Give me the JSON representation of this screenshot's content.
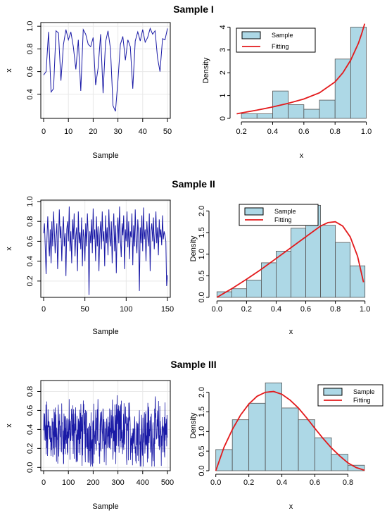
{
  "colors": {
    "line": "#1a1aa6",
    "bar_fill": "#add8e6",
    "bar_edge": "#555555",
    "fit": "#e31a1c",
    "grid": "#e8e8e8"
  },
  "panels": [
    {
      "title": "Sample I",
      "trace": {
        "type": "line",
        "xlabel": "Sample",
        "ylabel": "x",
        "xlim": [
          0,
          50
        ],
        "ylim": [
          0.2,
          1.02
        ],
        "xticks": [
          0,
          10,
          20,
          30,
          40,
          50
        ],
        "yticks": [
          0.4,
          0.6,
          0.8,
          1.0
        ],
        "ytick_labels": [
          "0.4",
          "0.6",
          "0.8",
          "1.0"
        ],
        "values": [
          0.57,
          0.6,
          0.95,
          0.42,
          0.45,
          0.96,
          0.94,
          0.52,
          0.84,
          0.97,
          0.88,
          0.95,
          0.82,
          0.62,
          0.88,
          0.43,
          0.97,
          0.93,
          0.84,
          0.82,
          0.9,
          0.48,
          0.63,
          0.93,
          0.41,
          0.86,
          0.96,
          0.8,
          0.3,
          0.25,
          0.52,
          0.84,
          0.91,
          0.7,
          0.88,
          0.82,
          0.45,
          0.87,
          0.95,
          0.87,
          0.97,
          0.86,
          0.9,
          0.98,
          0.93,
          0.96,
          0.72,
          0.6,
          0.89,
          0.88,
          0.98
        ]
      },
      "hist": {
        "type": "bar",
        "xlabel": "x",
        "ylabel": "Density",
        "xlim": [
          0.15,
          1.02
        ],
        "ylim": [
          0,
          4.2
        ],
        "xticks": [
          0.2,
          0.4,
          0.6,
          0.8,
          1.0
        ],
        "xtick_labels": [
          "0.2",
          "0.4",
          "0.6",
          "0.8",
          "1.0"
        ],
        "yticks": [
          0,
          1,
          2,
          3,
          4
        ],
        "ytick_labels": [
          "0",
          "1",
          "2",
          "3",
          "4"
        ],
        "bins": [
          0.2,
          0.3,
          0.4,
          0.5,
          0.6,
          0.7,
          0.8,
          0.9,
          1.0
        ],
        "values": [
          0.2,
          0.2,
          1.2,
          0.6,
          0.4,
          0.8,
          2.6,
          4.0
        ],
        "fit_x": [
          0.17,
          0.2,
          0.3,
          0.4,
          0.5,
          0.6,
          0.7,
          0.8,
          0.85,
          0.9,
          0.95,
          0.97,
          0.99
        ],
        "fit_y": [
          0.2,
          0.24,
          0.36,
          0.5,
          0.66,
          0.85,
          1.12,
          1.6,
          2.0,
          2.55,
          3.3,
          3.7,
          4.15
        ],
        "legend": [
          "Sample",
          "Fitting"
        ],
        "legend_pos": "top-left"
      }
    },
    {
      "title": "Sample II",
      "trace": {
        "type": "line",
        "xlabel": "Sample",
        "ylabel": "x",
        "xlim": [
          0,
          150
        ],
        "ylim": [
          0.05,
          1.0
        ],
        "xticks": [
          0,
          50,
          100,
          150
        ],
        "yticks": [
          0.2,
          0.4,
          0.6,
          0.8,
          1.0
        ],
        "ytick_labels": [
          "0.2",
          "0.4",
          "0.6",
          "0.8",
          "1.0"
        ],
        "values": [
          0.68,
          0.78,
          0.55,
          0.27,
          0.62,
          0.85,
          0.6,
          0.45,
          0.72,
          0.38,
          0.8,
          0.55,
          0.9,
          0.7,
          0.48,
          0.65,
          0.78,
          0.32,
          0.58,
          0.92,
          0.63,
          0.75,
          0.4,
          0.7,
          0.85,
          0.55,
          0.68,
          0.25,
          0.72,
          0.8,
          0.6,
          0.95,
          0.5,
          0.7,
          0.38,
          0.82,
          0.62,
          0.88,
          0.45,
          0.66,
          0.74,
          0.3,
          0.9,
          0.58,
          0.69,
          0.52,
          0.84,
          0.35,
          0.72,
          0.64,
          0.4,
          0.78,
          0.55,
          0.88,
          0.66,
          0.06,
          0.7,
          0.58,
          0.82,
          0.48,
          0.93,
          0.62,
          0.72,
          0.4,
          0.85,
          0.55,
          0.75,
          0.3,
          0.66,
          0.8,
          0.52,
          0.9,
          0.6,
          0.7,
          0.35,
          0.86,
          0.58,
          0.74,
          0.46,
          0.92,
          0.64,
          0.55,
          0.8,
          0.38,
          0.7,
          0.88,
          0.5,
          0.76,
          0.28,
          0.68,
          0.84,
          0.58,
          0.95,
          0.62,
          0.44,
          0.78,
          0.66,
          0.86,
          0.32,
          0.72,
          0.6,
          0.9,
          0.54,
          0.8,
          0.42,
          0.7,
          0.64,
          0.88,
          0.36,
          0.76,
          0.55,
          0.92,
          0.6,
          0.48,
          0.82,
          0.68,
          0.1,
          0.74,
          0.58,
          0.86,
          0.5,
          0.94,
          0.62,
          0.72,
          0.4,
          0.8,
          0.66,
          0.55,
          0.88,
          0.3,
          0.7,
          0.78,
          0.6,
          0.84,
          0.52,
          0.68,
          0.9,
          0.58,
          0.74,
          0.46,
          0.82,
          0.64,
          0.72,
          0.56,
          0.86,
          0.62,
          0.7,
          0.66,
          0.6,
          0.15,
          0.26
        ]
      },
      "hist": {
        "type": "bar",
        "xlabel": "x",
        "ylabel": "Density",
        "xlim": [
          -0.03,
          1.03
        ],
        "ylim": [
          0,
          2.25
        ],
        "xticks": [
          0.0,
          0.2,
          0.4,
          0.6,
          0.8,
          1.0
        ],
        "xtick_labels": [
          "0.0",
          "0.2",
          "0.4",
          "0.6",
          "0.8",
          "1.0"
        ],
        "yticks": [
          0.0,
          0.5,
          1.0,
          1.5,
          2.0
        ],
        "ytick_labels": [
          "0.0",
          "0.5",
          "1.0",
          "1.5",
          "2.0"
        ],
        "bins": [
          0.0,
          0.1,
          0.2,
          0.3,
          0.4,
          0.5,
          0.6,
          0.7,
          0.8,
          0.9,
          1.0
        ],
        "values": [
          0.13,
          0.2,
          0.4,
          0.8,
          1.07,
          1.6,
          2.13,
          1.67,
          1.27,
          0.73
        ],
        "fit_x": [
          0.0,
          0.1,
          0.2,
          0.3,
          0.4,
          0.5,
          0.6,
          0.7,
          0.75,
          0.8,
          0.85,
          0.9,
          0.95,
          0.99
        ],
        "fit_y": [
          0.0,
          0.2,
          0.42,
          0.65,
          0.9,
          1.15,
          1.4,
          1.65,
          1.73,
          1.75,
          1.65,
          1.4,
          0.95,
          0.35
        ],
        "legend": [
          "Sample",
          "Fitting"
        ],
        "legend_pos": "top-left"
      }
    },
    {
      "title": "Sample III",
      "trace": {
        "type": "line",
        "xlabel": "Sample",
        "ylabel": "x",
        "xlim": [
          0,
          500
        ],
        "ylim": [
          -0.02,
          0.9
        ],
        "xticks": [
          0,
          100,
          200,
          300,
          400,
          500
        ],
        "yticks": [
          0.0,
          0.2,
          0.4,
          0.6,
          0.8
        ],
        "ytick_labels": [
          "0.0",
          "0.2",
          "0.4",
          "0.6",
          "0.8"
        ],
        "series_count": 500,
        "series_range": [
          0.01,
          0.86
        ]
      },
      "hist": {
        "type": "bar",
        "xlabel": "x",
        "ylabel": "Density",
        "xlim": [
          -0.02,
          0.93
        ],
        "ylim": [
          0,
          2.3
        ],
        "xticks": [
          0.0,
          0.2,
          0.4,
          0.6,
          0.8
        ],
        "xtick_labels": [
          "0.0",
          "0.2",
          "0.4",
          "0.6",
          "0.8"
        ],
        "yticks": [
          0.0,
          0.5,
          1.0,
          1.5,
          2.0
        ],
        "ytick_labels": [
          "0.0",
          "0.5",
          "1.0",
          "1.5",
          "2.0"
        ],
        "bins": [
          0.0,
          0.1,
          0.2,
          0.3,
          0.4,
          0.5,
          0.6,
          0.7,
          0.8,
          0.9
        ],
        "values": [
          0.54,
          1.3,
          1.72,
          2.24,
          1.6,
          1.3,
          0.84,
          0.42,
          0.14
        ],
        "fit_x": [
          0.0,
          0.05,
          0.1,
          0.15,
          0.2,
          0.25,
          0.3,
          0.35,
          0.4,
          0.45,
          0.5,
          0.55,
          0.6,
          0.65,
          0.7,
          0.75,
          0.8,
          0.85,
          0.9
        ],
        "fit_y": [
          0.0,
          0.6,
          1.05,
          1.42,
          1.7,
          1.9,
          2.0,
          2.02,
          1.95,
          1.8,
          1.6,
          1.35,
          1.08,
          0.82,
          0.58,
          0.38,
          0.2,
          0.08,
          0.01
        ],
        "legend": [
          "Sample",
          "Fitting"
        ],
        "legend_pos": "top-right"
      }
    }
  ]
}
